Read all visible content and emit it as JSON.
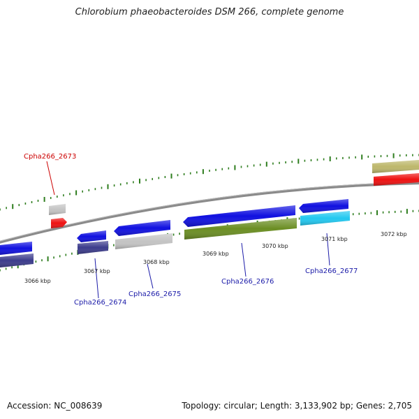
{
  "title": "Chlorobium phaeobacteroides DSM 266, complete genome",
  "footer": {
    "accession": "Accession: NC_008639",
    "topology": "Topology: circular; Length: 3,133,902 bp; Genes: 2,705"
  },
  "scale": [
    {
      "label": "3066 kbp"
    },
    {
      "label": "3067 kbp"
    },
    {
      "label": "3068 kbp"
    },
    {
      "label": "3069 kbp"
    },
    {
      "label": "3070 kbp"
    },
    {
      "label": "3071 kbp"
    },
    {
      "label": "3072 kbp"
    }
  ],
  "gene_labels": [
    {
      "text": "Cpha266_2673",
      "color": "#cc0000"
    },
    {
      "text": "Cpha266_2674",
      "color": "#1a1aa8"
    },
    {
      "text": "Cpha266_2675",
      "color": "#1a1aa8"
    },
    {
      "text": "Cpha266_2676",
      "color": "#1a1aa8"
    },
    {
      "text": "Cpha266_2677",
      "color": "#1a1aa8"
    }
  ],
  "colors": {
    "backbone": "#8a8a8a",
    "tick": "#2e7d1e",
    "blue": "#1010e0",
    "navy": "#3c3c8c",
    "gray": "#c4c4c4",
    "red": "#ee1111",
    "olive": "#6b8e23",
    "cyan": "#22c8f0",
    "khaki": "#bdb76b"
  }
}
